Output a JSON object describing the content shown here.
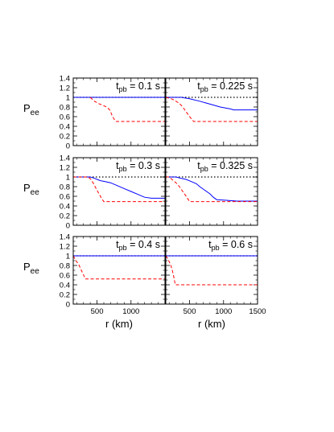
{
  "chart_data": [
    {
      "type": "line",
      "title": "t_pb = 0.1 s",
      "time_label": {
        "t": "t",
        "sub": "pb",
        "rest": " = 0.1 s"
      },
      "xlim": [
        150,
        1500
      ],
      "ylim": [
        0,
        1.4
      ],
      "reference": {
        "name": "",
        "y": 1.0
      },
      "series": [
        {
          "color": "blue",
          "x": [
            150,
            1500
          ],
          "y": [
            1.0,
            1.0
          ]
        },
        {
          "color": "red",
          "x": [
            400,
            430,
            460,
            500,
            540,
            580,
            610,
            640,
            680,
            700,
            720,
            750,
            780,
            1500
          ],
          "y": [
            1.0,
            0.96,
            0.92,
            0.89,
            0.86,
            0.84,
            0.82,
            0.8,
            0.75,
            0.7,
            0.63,
            0.55,
            0.5,
            0.5
          ]
        }
      ]
    },
    {
      "type": "line",
      "title": "t_pb = 0.225 s",
      "time_label": {
        "t": "t",
        "sub": "pb",
        "rest": " = 0.225 s"
      },
      "xlim": [
        150,
        1500
      ],
      "ylim": [
        0,
        1.4
      ],
      "reference": {
        "name": "",
        "y": 1.0
      },
      "series": [
        {
          "color": "blue",
          "x": [
            150,
            380,
            500,
            650,
            800,
            950,
            1100,
            1150,
            1500
          ],
          "y": [
            1.0,
            1.0,
            0.97,
            0.92,
            0.86,
            0.8,
            0.76,
            0.74,
            0.74
          ]
        },
        {
          "color": "red",
          "x": [
            150,
            230,
            280,
            320,
            360,
            400,
            450,
            500,
            560,
            1500
          ],
          "y": [
            1.0,
            0.97,
            0.94,
            0.9,
            0.86,
            0.8,
            0.7,
            0.6,
            0.5,
            0.5
          ]
        }
      ]
    },
    {
      "type": "line",
      "title": "t_pb = 0.3 s",
      "time_label": {
        "t": "t",
        "sub": "pb",
        "rest": " = 0.3 s"
      },
      "xlim": [
        150,
        1500
      ],
      "ylim": [
        0,
        1.4
      ],
      "reference": {
        "name": "",
        "y": 1.0
      },
      "series": [
        {
          "color": "blue",
          "x": [
            150,
            400,
            450,
            520,
            560,
            600,
            700,
            800,
            900,
            1000,
            1100,
            1200,
            1300,
            1500
          ],
          "y": [
            1.0,
            1.0,
            0.98,
            0.94,
            0.92,
            0.91,
            0.88,
            0.82,
            0.76,
            0.7,
            0.64,
            0.58,
            0.56,
            0.56
          ]
        },
        {
          "color": "red",
          "x": [
            150,
            370,
            410,
            450,
            490,
            530,
            570,
            600,
            1500
          ],
          "y": [
            1.0,
            1.0,
            0.95,
            0.86,
            0.75,
            0.65,
            0.55,
            0.49,
            0.49
          ]
        }
      ]
    },
    {
      "type": "line",
      "title": "t_pb = 0.325 s",
      "time_label": {
        "t": "t",
        "sub": "pb",
        "rest": " = 0.325 s"
      },
      "xlim": [
        150,
        1500
      ],
      "ylim": [
        0,
        1.4
      ],
      "reference": {
        "name": "",
        "y": 1.0
      },
      "series": [
        {
          "color": "blue",
          "x": [
            150,
            300,
            380,
            450,
            500,
            550,
            600,
            650,
            700,
            750,
            800,
            850,
            900,
            1000,
            1100,
            1200,
            1300,
            1500
          ],
          "y": [
            1.0,
            1.0,
            0.97,
            0.95,
            0.92,
            0.89,
            0.86,
            0.8,
            0.75,
            0.7,
            0.65,
            0.58,
            0.53,
            0.52,
            0.51,
            0.5,
            0.5,
            0.5
          ]
        },
        {
          "color": "red",
          "x": [
            150,
            200,
            250,
            300,
            350,
            400,
            450,
            500,
            1500
          ],
          "y": [
            1.0,
            1.0,
            0.94,
            0.88,
            0.8,
            0.7,
            0.6,
            0.49,
            0.49
          ]
        }
      ]
    },
    {
      "type": "line",
      "title": "t_pb = 0.4 s",
      "time_label": {
        "t": "t",
        "sub": "pb",
        "rest": " = 0.4 s"
      },
      "xlim": [
        150,
        1500
      ],
      "ylim": [
        0,
        1.4
      ],
      "xlabel": "r (km)",
      "xticks": [
        500,
        1000
      ],
      "reference": {
        "name": "",
        "y": 1.0
      },
      "series": [
        {
          "color": "blue",
          "x": [
            150,
            1500
          ],
          "y": [
            1.0,
            1.0
          ]
        },
        {
          "color": "red",
          "x": [
            150,
            190,
            230,
            270,
            310,
            330,
            1500
          ],
          "y": [
            1.0,
            0.9,
            0.82,
            0.7,
            0.58,
            0.52,
            0.52
          ]
        }
      ]
    },
    {
      "type": "line",
      "title": "t_pb = 0.6 s",
      "time_label": {
        "t": "t",
        "sub": "pb",
        "rest": " = 0.6 s"
      },
      "xlim": [
        150,
        1500
      ],
      "ylim": [
        0,
        1.4
      ],
      "xlabel": "r (km)",
      "xticks": [
        500,
        1000,
        1500
      ],
      "reference": {
        "name": "",
        "y": 1.0
      },
      "series": [
        {
          "color": "blue",
          "x": [
            150,
            1500
          ],
          "y": [
            1.0,
            1.0
          ]
        },
        {
          "color": "red",
          "x": [
            150,
            175,
            200,
            225,
            250,
            270,
            290,
            1500
          ],
          "y": [
            1.0,
            0.95,
            0.88,
            0.8,
            0.68,
            0.55,
            0.4,
            0.4
          ]
        }
      ]
    }
  ],
  "shared": {
    "y_axis_label": {
      "main": "P",
      "sub": "ee"
    },
    "y_ticks": [
      "0",
      "0.2",
      "0.4",
      "0.6",
      "0.8",
      "1",
      "1.2",
      "1.4"
    ],
    "x_axis_label": "r (km)",
    "x_ticks_left": [
      "500",
      "1000"
    ],
    "x_ticks_right": [
      "500",
      "1000",
      "1500"
    ],
    "colors": {
      "blue": "#0000ff",
      "red": "#ff0000",
      "reference": "#000000"
    }
  }
}
